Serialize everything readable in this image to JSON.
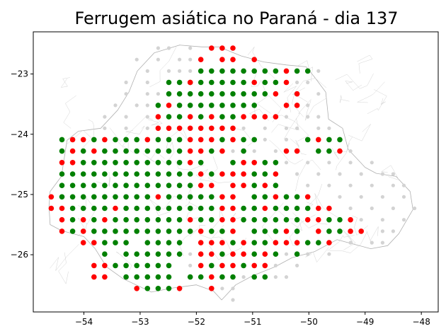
{
  "chart_data": {
    "type": "scatter",
    "title": "Ferrugem asiática no Paraná - dia 137",
    "xlabel": "",
    "ylabel": "",
    "xlim": [
      -54.9,
      -47.7
    ],
    "ylim": [
      -26.95,
      -22.3
    ],
    "x_ticks": [
      -54,
      -53,
      -52,
      -51,
      -50,
      -49,
      -48
    ],
    "x_tick_labels": [
      "−54",
      "−53",
      "−52",
      "−51",
      "−50",
      "−49",
      "−48"
    ],
    "y_ticks": [
      -23,
      -24,
      -25,
      -26
    ],
    "y_tick_labels": [
      "−23",
      "−24",
      "−25",
      "−26"
    ],
    "grid": false,
    "legend": "none",
    "grid_spacing_deg": 0.19,
    "colors": {
      "green": "#008000",
      "red": "#ff0000",
      "gray_station": "#d3d3d3",
      "border": "#b0b0b0"
    },
    "series": [
      {
        "color": "green",
        "rows": [
          {
            "y": -22.95,
            "x": [
              -51.92,
              -51.73,
              -51.54,
              -51.35,
              -51.16,
              -50.97,
              -50.78,
              -50.59,
              -50.21,
              -50.02
            ]
          },
          {
            "y": -23.14,
            "x": [
              -52.49,
              -52.3,
              -52.11,
              -51.92,
              -51.73,
              -51.54,
              -51.35,
              -51.16,
              -50.78,
              -50.59
            ]
          },
          {
            "y": -23.33,
            "x": [
              -52.49,
              -52.3,
              -52.11,
              -51.92,
              -51.73,
              -51.54,
              -51.35,
              -51.16,
              -50.97,
              -50.78
            ]
          },
          {
            "y": -23.52,
            "x": [
              -52.68,
              -52.3,
              -52.11,
              -51.92,
              -51.73,
              -51.54,
              -51.35,
              -51.16,
              -50.97
            ]
          },
          {
            "y": -23.71,
            "x": [
              -52.49,
              -52.3,
              -51.92,
              -51.54,
              -51.35
            ]
          },
          {
            "y": -24.09,
            "x": [
              -54.39,
              -53.82,
              -53.44,
              -53.25,
              -53.06,
              -52.68,
              -52.49,
              -52.3,
              -51.54,
              -51.16,
              -50.97,
              -50.02,
              -49.64,
              -49.45
            ]
          },
          {
            "y": -24.28,
            "x": [
              -54.39,
              -54.01,
              -53.63,
              -53.44,
              -53.25,
              -53.06,
              -52.87,
              -52.68,
              -52.49,
              -52.3,
              -51.73,
              -51.16,
              -49.83,
              -49.64
            ]
          },
          {
            "y": -24.47,
            "x": [
              -54.01,
              -53.82,
              -53.63,
              -53.44,
              -53.25,
              -53.06,
              -52.87,
              -52.68,
              -52.49,
              -52.3,
              -51.92,
              -51.35,
              -50.78,
              -50.59
            ]
          },
          {
            "y": -24.66,
            "x": [
              -54.39,
              -54.2,
              -54.01,
              -53.82,
              -53.63,
              -53.44,
              -53.25,
              -53.06,
              -52.87,
              -52.68,
              -52.49,
              -52.3,
              -52.11,
              -51.73,
              -50.97,
              -50.78
            ]
          },
          {
            "y": -24.85,
            "x": [
              -54.39,
              -54.2,
              -54.01,
              -53.82,
              -53.63,
              -53.44,
              -53.25,
              -53.06,
              -52.87,
              -52.68,
              -52.49,
              -52.3,
              -52.11,
              -50.97,
              -50.59
            ]
          },
          {
            "y": -25.04,
            "x": [
              -54.39,
              -54.2,
              -54.01,
              -53.82,
              -53.63,
              -53.44,
              -53.25,
              -53.06,
              -52.87,
              -52.49,
              -52.3,
              -52.11,
              -51.92,
              -51.73,
              -50.97,
              -50.78,
              -50.4,
              -50.21
            ]
          },
          {
            "y": -25.23,
            "x": [
              -54.2,
              -54.01,
              -53.82,
              -53.63,
              -53.25,
              -53.06,
              -52.87,
              -52.68,
              -52.49,
              -52.3,
              -52.11,
              -51.92,
              -51.73,
              -51.16,
              -50.97,
              -50.59,
              -50.4,
              -50.21,
              -50.02
            ]
          },
          {
            "y": -25.42,
            "x": [
              -54.2,
              -53.82,
              -53.44,
              -53.25,
              -53.06,
              -52.87,
              -52.68,
              -52.49,
              -52.3,
              -51.92,
              -51.73,
              -51.16,
              -50.97,
              -50.78,
              -50.59,
              -50.4,
              -50.21,
              -49.64,
              -49.45
            ]
          },
          {
            "y": -25.61,
            "x": [
              -54.2,
              -53.82,
              -53.63,
              -53.44,
              -53.25,
              -53.06,
              -52.87,
              -52.68,
              -52.49,
              -52.3,
              -52.11,
              -51.73,
              -51.54,
              -50.97,
              -50.78,
              -50.59,
              -50.21,
              -49.64,
              -49.45
            ]
          },
          {
            "y": -25.8,
            "x": [
              -53.63,
              -53.44,
              -53.25,
              -52.87,
              -52.68,
              -52.49,
              -52.3,
              -51.35,
              -50.97,
              -50.78,
              -50.02,
              -49.83
            ]
          },
          {
            "y": -25.99,
            "x": [
              -53.63,
              -53.25,
              -53.06,
              -52.87,
              -52.68,
              -52.49,
              -52.3,
              -51.54,
              -50.97,
              -50.59,
              -50.21
            ]
          },
          {
            "y": -26.18,
            "x": [
              -53.44,
              -53.25,
              -53.06,
              -52.87,
              -52.68,
              -52.49,
              -51.73,
              -51.16
            ]
          },
          {
            "y": -26.37,
            "x": [
              -53.25,
              -53.06,
              -52.87,
              -52.68,
              -52.49,
              -52.11,
              -51.92,
              -51.54,
              -51.35,
              -50.97,
              -50.78
            ]
          },
          {
            "y": -26.56,
            "x": [
              -52.87,
              -52.68,
              -52.49
            ]
          }
        ]
      },
      {
        "color": "red",
        "rows": [
          {
            "y": -22.57,
            "x": [
              -51.73,
              -51.54,
              -51.35
            ]
          },
          {
            "y": -22.76,
            "x": [
              -51.92,
              -51.54,
              -51.35,
              -50.97
            ]
          },
          {
            "y": -22.95,
            "x": [
              -50.4
            ]
          },
          {
            "y": -23.14,
            "x": [
              -52.11,
              -50.97,
              -50.4
            ]
          },
          {
            "y": -23.33,
            "x": [
              -50.59,
              -50.21
            ]
          },
          {
            "y": -23.52,
            "x": [
              -52.49,
              -50.4,
              -50.21
            ]
          },
          {
            "y": -23.71,
            "x": [
              -52.68,
              -52.11,
              -51.73,
              -51.16,
              -50.97,
              -50.78,
              -50.59
            ]
          },
          {
            "y": -23.9,
            "x": [
              -52.68,
              -52.49,
              -52.3,
              -52.11,
              -51.92,
              -51.73,
              -51.54,
              -51.35
            ]
          },
          {
            "y": -24.09,
            "x": [
              -54.2,
              -54.01,
              -53.63,
              -52.87,
              -52.11,
              -51.92,
              -51.73,
              -51.35,
              -49.83
            ]
          },
          {
            "y": -24.28,
            "x": [
              -54.2,
              -53.82,
              -52.11,
              -51.92,
              -51.54,
              -50.4,
              -50.21,
              -49.45
            ]
          },
          {
            "y": -24.47,
            "x": [
              -54.39,
              -54.2,
              -52.11,
              -51.16,
              -50.97
            ]
          },
          {
            "y": -24.66,
            "x": [
              -51.92,
              -51.54,
              -51.35,
              -51.16,
              -50.59
            ]
          },
          {
            "y": -24.85,
            "x": [
              -51.92,
              -51.73,
              -51.35,
              -51.16,
              -50.78
            ]
          },
          {
            "y": -25.04,
            "x": [
              -54.58,
              -52.68,
              -51.54,
              -51.35,
              -50.59,
              -50.02
            ]
          },
          {
            "y": -25.23,
            "x": [
              -54.58,
              -54.39,
              -53.44,
              -51.54,
              -51.35,
              -50.78,
              -49.83,
              -49.64
            ]
          },
          {
            "y": -25.42,
            "x": [
              -54.39,
              -54.01,
              -53.63,
              -52.11,
              -51.54,
              -51.35,
              -50.02,
              -49.83,
              -49.26
            ]
          },
          {
            "y": -25.61,
            "x": [
              -54.39,
              -54.01,
              -51.92,
              -51.35,
              -50.4,
              -49.83,
              -49.26,
              -49.07
            ]
          },
          {
            "y": -25.8,
            "x": [
              -54.01,
              -53.82,
              -51.92,
              -51.73,
              -51.54,
              -51.16,
              -50.59,
              -50.4,
              -50.21,
              -49.64
            ]
          },
          {
            "y": -25.99,
            "x": [
              -51.92,
              -51.73,
              -51.35,
              -51.16,
              -50.78
            ]
          },
          {
            "y": -26.18,
            "x": [
              -53.82,
              -53.63,
              -51.92,
              -51.54,
              -51.35,
              -50.97,
              -50.78
            ]
          },
          {
            "y": -26.37,
            "x": [
              -53.82,
              -53.63,
              -51.73
            ]
          },
          {
            "y": -26.56,
            "x": [
              -53.06,
              -52.3,
              -51.73
            ]
          }
        ]
      },
      {
        "color": "gray_station",
        "rows": [
          {
            "y": -22.57,
            "x": [
              -52.68,
              -52.49,
              -52.11
            ]
          },
          {
            "y": -22.76,
            "x": [
              -53.06,
              -52.68,
              -52.3,
              -52.11
            ]
          },
          {
            "y": -22.95,
            "x": [
              -52.87,
              -52.49,
              -52.3,
              -52.11,
              -49.83
            ]
          },
          {
            "y": -23.14,
            "x": [
              -53.25,
              -52.87,
              -50.21,
              -50.02
            ]
          },
          {
            "y": -23.33,
            "x": [
              -53.25,
              -52.87,
              -52.68,
              -49.83
            ]
          },
          {
            "y": -23.52,
            "x": [
              -53.44,
              -53.06,
              -52.87,
              -50.02
            ]
          },
          {
            "y": -23.71,
            "x": [
              -53.63,
              -53.25,
              -52.87,
              -50.4,
              -50.02,
              -49.83
            ]
          },
          {
            "y": -23.9,
            "x": [
              -53.63,
              -53.25,
              -52.87,
              -51.16,
              -50.78,
              -50.4,
              -50.21,
              -49.83,
              -49.64
            ]
          },
          {
            "y": -24.09,
            "x": [
              -51.16,
              -50.78,
              -50.4,
              -49.64
            ]
          },
          {
            "y": -24.28,
            "x": [
              -51.35,
              -50.97,
              -50.59,
              -49.26
            ]
          },
          {
            "y": -24.47,
            "x": [
              -50.4,
              -50.02,
              -49.64,
              -49.26,
              -48.88
            ]
          },
          {
            "y": -24.66,
            "x": [
              -50.21,
              -49.83,
              -49.45,
              -49.07,
              -48.69,
              -48.5
            ]
          },
          {
            "y": -24.85,
            "x": [
              -50.02,
              -49.64,
              -49.26,
              -48.88,
              -48.5,
              -48.31
            ]
          },
          {
            "y": -25.04,
            "x": [
              -49.45,
              -49.07,
              -48.69,
              -48.31
            ]
          },
          {
            "y": -25.23,
            "x": [
              -49.26,
              -48.88,
              -48.5,
              -48.12
            ]
          },
          {
            "y": -25.42,
            "x": [
              -49.07,
              -48.69,
              -48.31
            ]
          },
          {
            "y": -25.61,
            "x": [
              -48.69,
              -48.5
            ]
          },
          {
            "y": -25.8,
            "x": [
              -50.97,
              -49.26,
              -48.88,
              -48.69
            ]
          },
          {
            "y": -25.99,
            "x": [
              -52.11,
              -50.4,
              -50.02,
              -49.64
            ]
          },
          {
            "y": -26.18,
            "x": [
              -52.11,
              -50.59,
              -50.21
            ]
          },
          {
            "y": -26.37,
            "x": [
              -51.16,
              -50.59,
              -50.4
            ]
          },
          {
            "y": -26.56,
            "x": [
              -51.54,
              -51.35
            ]
          },
          {
            "y": -26.75,
            "x": [
              -51.35
            ]
          }
        ]
      }
    ]
  }
}
